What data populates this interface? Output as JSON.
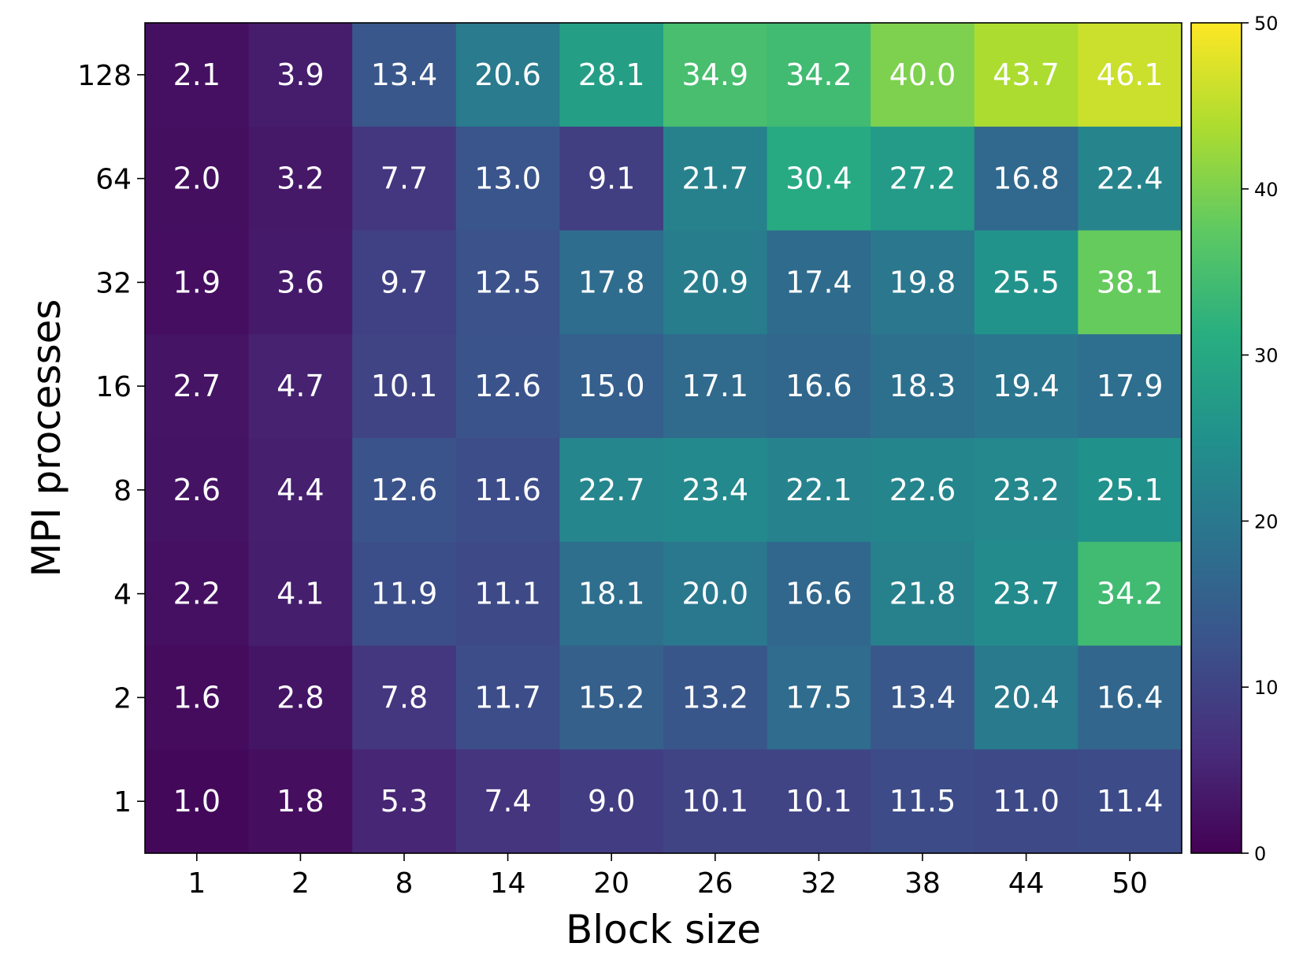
{
  "chart_data": {
    "type": "heatmap",
    "title": "",
    "xlabel": "Block size",
    "ylabel": "MPI processes",
    "x_categories": [
      "1",
      "2",
      "8",
      "14",
      "20",
      "26",
      "32",
      "38",
      "44",
      "50"
    ],
    "y_categories": [
      "128",
      "64",
      "32",
      "16",
      "8",
      "4",
      "2",
      "1"
    ],
    "values": [
      [
        2.1,
        3.9,
        13.4,
        20.6,
        28.1,
        34.9,
        34.2,
        40.0,
        43.7,
        46.1
      ],
      [
        2.0,
        3.2,
        7.7,
        13.0,
        9.1,
        21.7,
        30.4,
        27.2,
        16.8,
        22.4
      ],
      [
        1.9,
        3.6,
        9.7,
        12.5,
        17.8,
        20.9,
        17.4,
        19.8,
        25.5,
        38.1
      ],
      [
        2.7,
        4.7,
        10.1,
        12.6,
        15.0,
        17.1,
        16.6,
        18.3,
        19.4,
        17.9
      ],
      [
        2.6,
        4.4,
        12.6,
        11.6,
        22.7,
        23.4,
        22.1,
        22.6,
        23.2,
        25.1
      ],
      [
        2.2,
        4.1,
        11.9,
        11.1,
        18.1,
        20.0,
        16.6,
        21.8,
        23.7,
        34.2
      ],
      [
        1.6,
        2.8,
        7.8,
        11.7,
        15.2,
        13.2,
        17.5,
        13.4,
        20.4,
        16.4
      ],
      [
        1.0,
        1.8,
        5.3,
        7.4,
        9.0,
        10.1,
        10.1,
        11.5,
        11.0,
        11.4
      ]
    ],
    "colormap": "viridis",
    "vmin": 0,
    "vmax": 50,
    "colorbar_ticks": [
      "0",
      "10",
      "20",
      "30",
      "40",
      "50"
    ],
    "cell_label_color": "#ffffff",
    "legend": "colorbar-right",
    "grid": false
  }
}
